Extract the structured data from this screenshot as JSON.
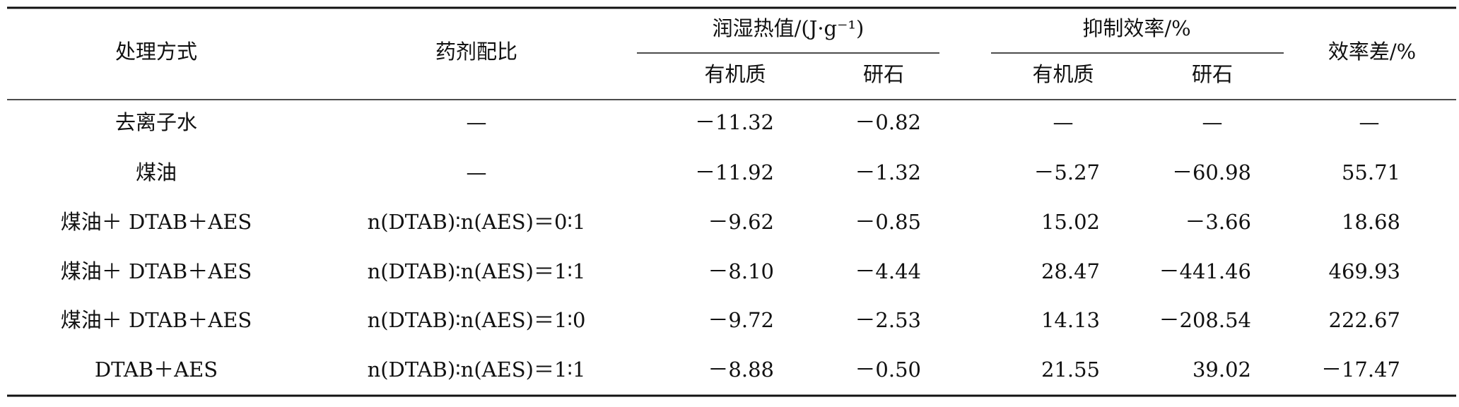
{
  "table": {
    "header": {
      "col1": "处理方式",
      "col2": "药剂配比",
      "group1": "润湿热值/(J·g⁻¹)",
      "group1_sub": [
        "有机质",
        "研石"
      ],
      "group2": "抑制效率/%",
      "group2_sub": [
        "有机质",
        "研石"
      ],
      "col7": "效率差/%"
    },
    "rows": [
      [
        "去离子水",
        "—",
        "－11.32",
        "－0.82",
        "—",
        "—",
        "—"
      ],
      [
        "煤油",
        "—",
        "－11.92",
        "－1.32",
        "－5.27",
        "－60.98",
        "55.71"
      ],
      [
        "煤油＋ DTAB＋AES",
        "n(DTAB)∶n(AES)＝0∶1",
        "－9.62",
        "－0.85",
        "15.02",
        "－3.66",
        "18.68"
      ],
      [
        "煤油＋ DTAB＋AES",
        "n(DTAB)∶n(AES)＝1∶1",
        "－8.10",
        "－4.44",
        "28.47",
        "－441.46",
        "469.93"
      ],
      [
        "煤油＋ DTAB＋AES",
        "n(DTAB)∶n(AES)＝1∶0",
        "－9.72",
        "－2.53",
        "14.13",
        "－208.54",
        "222.67"
      ],
      [
        "DTAB＋AES",
        "n(DTAB)∶n(AES)＝1∶1",
        "－8.88",
        "－0.50",
        "21.55",
        "39.02",
        "－17.47"
      ]
    ]
  }
}
